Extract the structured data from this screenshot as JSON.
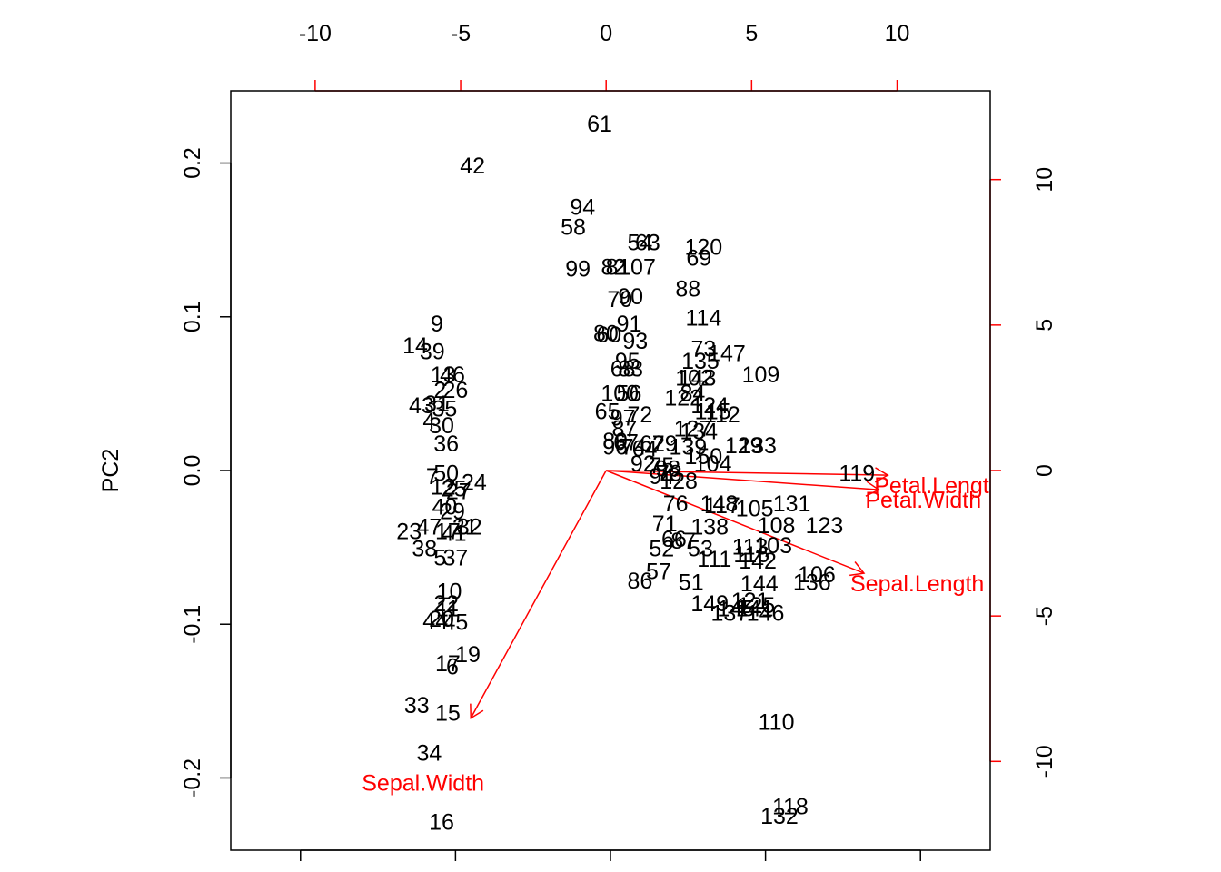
{
  "colors": {
    "observations": "#000000",
    "arrows": "#FF0000",
    "frame": "#000000",
    "background": "#FFFFFF"
  },
  "chart_data": {
    "type": "scatter",
    "subtype": "biplot",
    "title": "",
    "xlabel": "",
    "ylabel": "PC2",
    "xlim": [
      -0.245,
      0.245
    ],
    "ylim": [
      -0.247,
      0.247
    ],
    "x_ticks": [
      -0.2,
      -0.1,
      0.0,
      0.1,
      0.2
    ],
    "x_tick_labels": [],
    "y_ticks": [
      -0.2,
      -0.1,
      0.0,
      0.1,
      0.2
    ],
    "y_tick_labels": [
      "-0.2",
      "-0.1",
      "0.0",
      "0.1",
      "0.2"
    ],
    "secondary_xlim": [
      -12.9,
      13.2
    ],
    "secondary_ylim": [
      -13.05,
      13.05
    ],
    "secondary_x_ticks": [
      -10,
      -5,
      0,
      5,
      10
    ],
    "secondary_x_tick_labels": [
      "-10",
      "-5",
      "0",
      "5",
      "10"
    ],
    "secondary_y_ticks": [
      -10,
      -5,
      0,
      5,
      10
    ],
    "secondary_y_tick_labels": [
      "-10",
      "-5",
      "0",
      "5",
      "10"
    ],
    "grid": false,
    "observations": [
      {
        "label": "61",
        "x": -0.007,
        "y": 0.225
      },
      {
        "label": "42",
        "x": -0.089,
        "y": 0.198
      },
      {
        "label": "94",
        "x": -0.018,
        "y": 0.171
      },
      {
        "label": "58",
        "x": -0.024,
        "y": 0.158
      },
      {
        "label": "54",
        "x": 0.019,
        "y": 0.148
      },
      {
        "label": "63",
        "x": 0.024,
        "y": 0.148
      },
      {
        "label": "120",
        "x": 0.06,
        "y": 0.145
      },
      {
        "label": "69",
        "x": 0.057,
        "y": 0.138
      },
      {
        "label": "99",
        "x": -0.021,
        "y": 0.131
      },
      {
        "label": "82",
        "x": 0.002,
        "y": 0.132
      },
      {
        "label": "81",
        "x": 0.005,
        "y": 0.132
      },
      {
        "label": "107",
        "x": 0.017,
        "y": 0.132
      },
      {
        "label": "88",
        "x": 0.05,
        "y": 0.118
      },
      {
        "label": "70",
        "x": 0.006,
        "y": 0.111
      },
      {
        "label": "90",
        "x": 0.013,
        "y": 0.113
      },
      {
        "label": "114",
        "x": 0.06,
        "y": 0.099
      },
      {
        "label": "91",
        "x": 0.012,
        "y": 0.095
      },
      {
        "label": "80",
        "x": -0.003,
        "y": 0.089
      },
      {
        "label": "60",
        "x": -0.001,
        "y": 0.088
      },
      {
        "label": "93",
        "x": 0.016,
        "y": 0.084
      },
      {
        "label": "9",
        "x": -0.112,
        "y": 0.095
      },
      {
        "label": "14",
        "x": -0.126,
        "y": 0.081
      },
      {
        "label": "39",
        "x": -0.115,
        "y": 0.077
      },
      {
        "label": "73",
        "x": 0.06,
        "y": 0.079
      },
      {
        "label": "147",
        "x": 0.075,
        "y": 0.076
      },
      {
        "label": "135",
        "x": 0.058,
        "y": 0.071
      },
      {
        "label": "95",
        "x": 0.011,
        "y": 0.071
      },
      {
        "label": "68",
        "x": 0.008,
        "y": 0.066
      },
      {
        "label": "83",
        "x": 0.013,
        "y": 0.066
      },
      {
        "label": "13",
        "x": -0.108,
        "y": 0.062
      },
      {
        "label": "46",
        "x": -0.102,
        "y": 0.062
      },
      {
        "label": "109",
        "x": 0.097,
        "y": 0.062
      },
      {
        "label": "102",
        "x": 0.054,
        "y": 0.06
      },
      {
        "label": "143",
        "x": 0.056,
        "y": 0.06
      },
      {
        "label": "2",
        "x": -0.11,
        "y": 0.052
      },
      {
        "label": "26",
        "x": -0.1,
        "y": 0.052
      },
      {
        "label": "84",
        "x": 0.053,
        "y": 0.05
      },
      {
        "label": "100",
        "x": 0.006,
        "y": 0.05
      },
      {
        "label": "56",
        "x": 0.012,
        "y": 0.05
      },
      {
        "label": "122",
        "x": 0.047,
        "y": 0.047
      },
      {
        "label": "43",
        "x": -0.122,
        "y": 0.042
      },
      {
        "label": "31",
        "x": -0.112,
        "y": 0.043
      },
      {
        "label": "35",
        "x": -0.107,
        "y": 0.04
      },
      {
        "label": "124",
        "x": 0.064,
        "y": 0.042
      },
      {
        "label": "115",
        "x": 0.066,
        "y": 0.038
      },
      {
        "label": "112",
        "x": 0.072,
        "y": 0.036
      },
      {
        "label": "4",
        "x": -0.117,
        "y": 0.032
      },
      {
        "label": "30",
        "x": -0.109,
        "y": 0.029
      },
      {
        "label": "65",
        "x": -0.002,
        "y": 0.038
      },
      {
        "label": "97",
        "x": 0.008,
        "y": 0.034
      },
      {
        "label": "72",
        "x": 0.019,
        "y": 0.036
      },
      {
        "label": "127",
        "x": 0.053,
        "y": 0.027
      },
      {
        "label": "134",
        "x": 0.057,
        "y": 0.025
      },
      {
        "label": "87",
        "x": 0.009,
        "y": 0.027
      },
      {
        "label": "36",
        "x": -0.106,
        "y": 0.017
      },
      {
        "label": "89",
        "x": 0.003,
        "y": 0.019
      },
      {
        "label": "67",
        "x": 0.01,
        "y": 0.018
      },
      {
        "label": "79",
        "x": 0.035,
        "y": 0.017
      },
      {
        "label": "62",
        "x": 0.027,
        "y": 0.017
      },
      {
        "label": "96",
        "x": 0.003,
        "y": 0.015
      },
      {
        "label": "74",
        "x": 0.015,
        "y": 0.015
      },
      {
        "label": "64",
        "x": 0.022,
        "y": 0.014
      },
      {
        "label": "139",
        "x": 0.05,
        "y": 0.015
      },
      {
        "label": "129",
        "x": 0.086,
        "y": 0.016
      },
      {
        "label": "133",
        "x": 0.095,
        "y": 0.016
      },
      {
        "label": "150",
        "x": 0.06,
        "y": 0.009
      },
      {
        "label": "92",
        "x": 0.021,
        "y": 0.004
      },
      {
        "label": "104",
        "x": 0.066,
        "y": 0.004
      },
      {
        "label": "119",
        "x": 0.159,
        "y": -0.002
      },
      {
        "label": "75",
        "x": 0.033,
        "y": 0.003
      },
      {
        "label": "98",
        "x": 0.037,
        "y": 0.001
      },
      {
        "label": "50",
        "x": -0.106,
        "y": -0.002
      },
      {
        "label": "7",
        "x": -0.115,
        "y": -0.004
      },
      {
        "label": "24",
        "x": -0.088,
        "y": -0.008
      },
      {
        "label": "94",
        "x": 0.033,
        "y": -0.004
      },
      {
        "label": "78",
        "x": 0.038,
        "y": -0.002
      },
      {
        "label": "128",
        "x": 0.044,
        "y": -0.007
      },
      {
        "label": "12",
        "x": -0.108,
        "y": -0.011
      },
      {
        "label": "25",
        "x": -0.101,
        "y": -0.012
      },
      {
        "label": "27",
        "x": -0.098,
        "y": -0.014
      },
      {
        "label": "40",
        "x": -0.107,
        "y": -0.024
      },
      {
        "label": "29",
        "x": -0.102,
        "y": -0.027
      },
      {
        "label": "76",
        "x": 0.042,
        "y": -0.022
      },
      {
        "label": "148",
        "x": 0.07,
        "y": -0.022
      },
      {
        "label": "117",
        "x": 0.072,
        "y": -0.023
      },
      {
        "label": "105",
        "x": 0.093,
        "y": -0.025
      },
      {
        "label": "131",
        "x": 0.117,
        "y": -0.022
      },
      {
        "label": "23",
        "x": -0.13,
        "y": -0.04
      },
      {
        "label": "47",
        "x": -0.117,
        "y": -0.037
      },
      {
        "label": "17",
        "x": -0.105,
        "y": -0.04
      },
      {
        "label": "21",
        "x": -0.094,
        "y": -0.037
      },
      {
        "label": "32",
        "x": -0.091,
        "y": -0.037
      },
      {
        "label": "41",
        "x": -0.101,
        "y": -0.041
      },
      {
        "label": "71",
        "x": 0.035,
        "y": -0.035
      },
      {
        "label": "138",
        "x": 0.064,
        "y": -0.037
      },
      {
        "label": "108",
        "x": 0.107,
        "y": -0.036
      },
      {
        "label": "123",
        "x": 0.138,
        "y": -0.036
      },
      {
        "label": "113",
        "x": 0.09,
        "y": -0.05
      },
      {
        "label": "103",
        "x": 0.105,
        "y": -0.049
      },
      {
        "label": "66",
        "x": 0.041,
        "y": -0.045
      },
      {
        "label": "87",
        "x": 0.047,
        "y": -0.046
      },
      {
        "label": "38",
        "x": -0.12,
        "y": -0.051
      },
      {
        "label": "5",
        "x": -0.11,
        "y": -0.057
      },
      {
        "label": "37",
        "x": -0.1,
        "y": -0.057
      },
      {
        "label": "52",
        "x": 0.033,
        "y": -0.051
      },
      {
        "label": "53",
        "x": 0.058,
        "y": -0.051
      },
      {
        "label": "111",
        "x": 0.067,
        "y": -0.058
      },
      {
        "label": "116",
        "x": 0.091,
        "y": -0.055
      },
      {
        "label": "142",
        "x": 0.095,
        "y": -0.059
      },
      {
        "label": "57",
        "x": 0.031,
        "y": -0.066
      },
      {
        "label": "51",
        "x": 0.052,
        "y": -0.073
      },
      {
        "label": "86",
        "x": 0.019,
        "y": -0.072
      },
      {
        "label": "106",
        "x": 0.133,
        "y": -0.068
      },
      {
        "label": "136",
        "x": 0.13,
        "y": -0.073
      },
      {
        "label": "144",
        "x": 0.096,
        "y": -0.074
      },
      {
        "label": "10",
        "x": -0.104,
        "y": -0.079
      },
      {
        "label": "22",
        "x": -0.106,
        "y": -0.087
      },
      {
        "label": "149",
        "x": 0.064,
        "y": -0.087
      },
      {
        "label": "121",
        "x": 0.09,
        "y": -0.085
      },
      {
        "label": "125",
        "x": 0.094,
        "y": -0.088
      },
      {
        "label": "145",
        "x": 0.081,
        "y": -0.09
      },
      {
        "label": "141",
        "x": 0.093,
        "y": -0.09
      },
      {
        "label": "137",
        "x": 0.077,
        "y": -0.093
      },
      {
        "label": "146",
        "x": 0.1,
        "y": -0.093
      },
      {
        "label": "11",
        "x": -0.105,
        "y": -0.09
      },
      {
        "label": "44",
        "x": -0.113,
        "y": -0.098
      },
      {
        "label": "20",
        "x": -0.109,
        "y": -0.097
      },
      {
        "label": "45",
        "x": -0.1,
        "y": -0.099
      },
      {
        "label": "19",
        "x": -0.092,
        "y": -0.12
      },
      {
        "label": "17",
        "x": -0.105,
        "y": -0.126
      },
      {
        "label": "6",
        "x": -0.102,
        "y": -0.128
      },
      {
        "label": "33",
        "x": -0.125,
        "y": -0.153
      },
      {
        "label": "15",
        "x": -0.105,
        "y": -0.158
      },
      {
        "label": "110",
        "x": 0.107,
        "y": -0.164
      },
      {
        "label": "34",
        "x": -0.117,
        "y": -0.184
      },
      {
        "label": "118",
        "x": 0.116,
        "y": -0.219
      },
      {
        "label": "132",
        "x": 0.109,
        "y": -0.225
      },
      {
        "label": "16",
        "x": -0.109,
        "y": -0.229
      }
    ],
    "variables": [
      {
        "name": "Sepal.Length",
        "x": 8.86,
        "y": -3.53,
        "label_shown": "Sepal.Lengt"
      },
      {
        "name": "Sepal.Width",
        "x": -4.65,
        "y": -8.51,
        "label_shown": "Sepal.Width"
      },
      {
        "name": "Petal.Length",
        "x": 9.68,
        "y": -0.16,
        "label_shown": "Petal.Le"
      },
      {
        "name": "Petal.Width",
        "x": 9.37,
        "y": -0.66,
        "label_shown": "Petal.Wi"
      }
    ]
  }
}
